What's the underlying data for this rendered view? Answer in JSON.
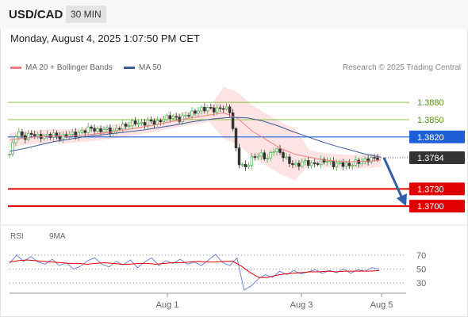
{
  "header": {
    "pair": "USD/CAD",
    "timeframe": "30 MIN"
  },
  "datetime": "Monday, August 4, 2025 1:07:50 PM CET",
  "legend": {
    "ma20": "MA 20 + Bollinger Bands",
    "ma50": "MA 50",
    "copyright": "Research © 2025 Trading Central"
  },
  "rsi_legend": {
    "rsi": "RSI",
    "ma9": "9MA"
  },
  "colors": {
    "resistance": "#8bc34a",
    "pivot": "#1f5fd6",
    "support": "#e00000",
    "price": "#333333",
    "candle_up": "#4caf50",
    "candle_down": "#333333",
    "band_fill": "#fde3e3",
    "ma20": "#f08080",
    "ma50": "#3b5b9b",
    "rsi": "#6f86d6",
    "rsi_ma": "#e00000",
    "arrow": "#2f5fa8"
  },
  "chart_data": {
    "type": "candlestick",
    "price_ylim": [
      1.367,
      1.392
    ],
    "x_ticks": [
      "Aug 1",
      "Aug 3",
      "Aug 5"
    ],
    "levels": [
      {
        "value": "1.3880",
        "kind": "resistance"
      },
      {
        "value": "1.3850",
        "kind": "resistance"
      },
      {
        "value": "1.3820",
        "kind": "pivot"
      },
      {
        "value": "1.3784",
        "kind": "price"
      },
      {
        "value": "1.3730",
        "kind": "support"
      },
      {
        "value": "1.3700",
        "kind": "support"
      }
    ],
    "price_path": [
      1.379,
      1.383,
      1.3818,
      1.3826,
      1.382,
      1.3822,
      1.3824,
      1.3818,
      1.3826,
      1.3824,
      1.383,
      1.3836,
      1.383,
      1.3834,
      1.3828,
      1.3838,
      1.384,
      1.3846,
      1.3842,
      1.3848,
      1.3844,
      1.3852,
      1.3856,
      1.385,
      1.3858,
      1.3862,
      1.3868,
      1.387,
      1.3866,
      1.3872,
      1.3864,
      1.3778,
      1.3766,
      1.3784,
      1.379,
      1.3782,
      1.38,
      1.379,
      1.3776,
      1.377,
      1.3778,
      1.3772,
      1.3776,
      1.378,
      1.3772,
      1.3774,
      1.377,
      1.3776,
      1.3778,
      1.3782,
      1.3784
    ],
    "ma20_path": [
      1.3815,
      1.3818,
      1.382,
      1.3822,
      1.3821,
      1.3823,
      1.3825,
      1.3828,
      1.3832,
      1.3836,
      1.384,
      1.3845,
      1.385,
      1.3854,
      1.3858,
      1.3862,
      1.3852,
      1.383,
      1.3815,
      1.38,
      1.379,
      1.3785,
      1.378,
      1.3778,
      1.3777,
      1.3778,
      1.378
    ],
    "ma50_path": [
      1.3795,
      1.38,
      1.3806,
      1.3812,
      1.3816,
      1.382,
      1.3823,
      1.3826,
      1.3829,
      1.3832,
      1.3836,
      1.384,
      1.3845,
      1.3849,
      1.3852,
      1.3854,
      1.3853,
      1.3848,
      1.384,
      1.383,
      1.3821,
      1.3812,
      1.3804,
      1.3797,
      1.379,
      1.3785
    ],
    "forecast": [
      1.3784,
      1.37
    ],
    "rsi": {
      "ylim": [
        20,
        80
      ],
      "ticks": [
        "70",
        "50",
        "30"
      ],
      "values": [
        58,
        70,
        61,
        68,
        60,
        57,
        64,
        55,
        59,
        50,
        54,
        62,
        66,
        57,
        53,
        61,
        56,
        63,
        52,
        60,
        66,
        55,
        62,
        58,
        64,
        57,
        60,
        55,
        63,
        71,
        59,
        55,
        66,
        20,
        26,
        36,
        42,
        38,
        47,
        42,
        48,
        43,
        46,
        49,
        44,
        48,
        45,
        50,
        44,
        49,
        47,
        52,
        50
      ],
      "ma_values": [
        60,
        62,
        63,
        62,
        61,
        60,
        59,
        58,
        58,
        57,
        58,
        59,
        58,
        57,
        57,
        58,
        58,
        57,
        58,
        59,
        59,
        60,
        61,
        60,
        60,
        61,
        61,
        54,
        45,
        38,
        38,
        41,
        43,
        44,
        45,
        46,
        46,
        47,
        46,
        47,
        47,
        47,
        47,
        48
      ]
    }
  }
}
